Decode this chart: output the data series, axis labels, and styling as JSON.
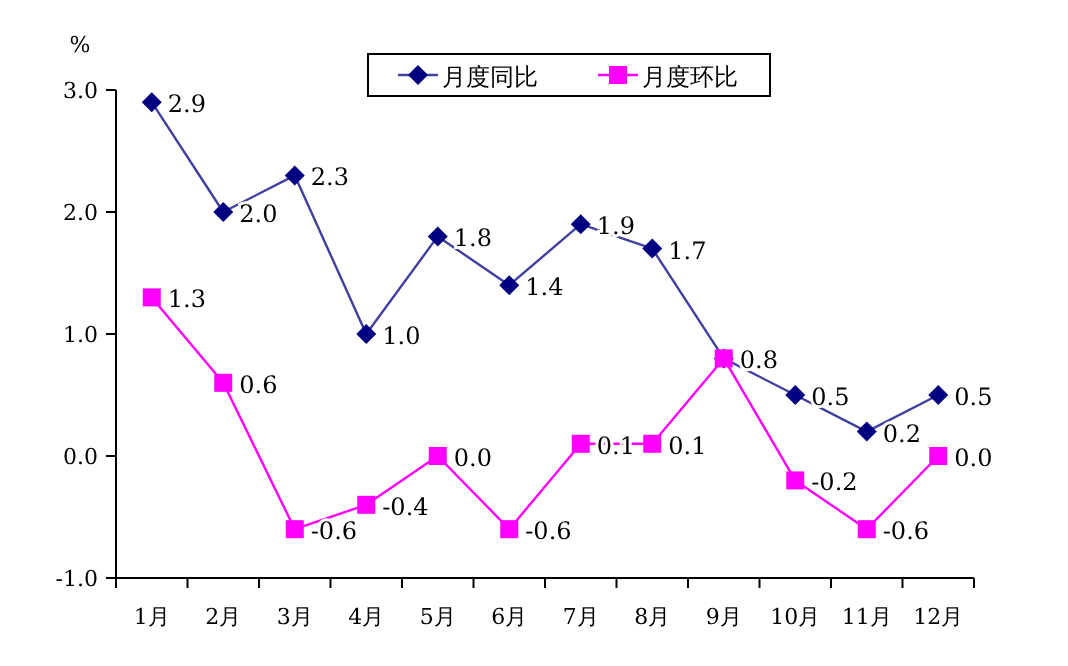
{
  "chart_data": {
    "type": "line",
    "ylabel": "%",
    "categories": [
      "1月",
      "2月",
      "3月",
      "4月",
      "5月",
      "6月",
      "7月",
      "8月",
      "9月",
      "10月",
      "11月",
      "12月"
    ],
    "series": [
      {
        "name": "月度同比",
        "color": "#000080",
        "marker": "diamond",
        "values": [
          2.9,
          2.0,
          2.3,
          1.0,
          1.8,
          1.4,
          1.9,
          1.7,
          0.8,
          0.5,
          0.2,
          0.5
        ],
        "value_labels": [
          "2.9",
          "2.0",
          "2.3",
          "1.0",
          "1.8",
          "1.4",
          "1.9",
          "1.7",
          "0.8",
          "0.5",
          "0.2",
          "0.5"
        ]
      },
      {
        "name": "月度环比",
        "color": "#ff00ff",
        "marker": "square",
        "values": [
          1.3,
          0.6,
          -0.6,
          -0.4,
          0.0,
          -0.6,
          0.1,
          0.1,
          0.8,
          -0.2,
          -0.6,
          0.0
        ],
        "value_labels": [
          "1.3",
          "0.6",
          "-0.6",
          "-0.4",
          "0.0",
          "-0.6",
          "0.1",
          "0.1",
          null,
          "-0.2",
          "-0.6",
          "0.0"
        ]
      }
    ],
    "ylim": [
      -1.0,
      3.0
    ],
    "yticks": [
      {
        "value": -1,
        "label": "-1.0"
      },
      {
        "value": 0,
        "label": "0.0"
      },
      {
        "value": 1,
        "label": "1.0"
      },
      {
        "value": 2,
        "label": "2.0"
      },
      {
        "value": 3,
        "label": "3.0"
      }
    ],
    "legend": "top",
    "grid": false
  }
}
